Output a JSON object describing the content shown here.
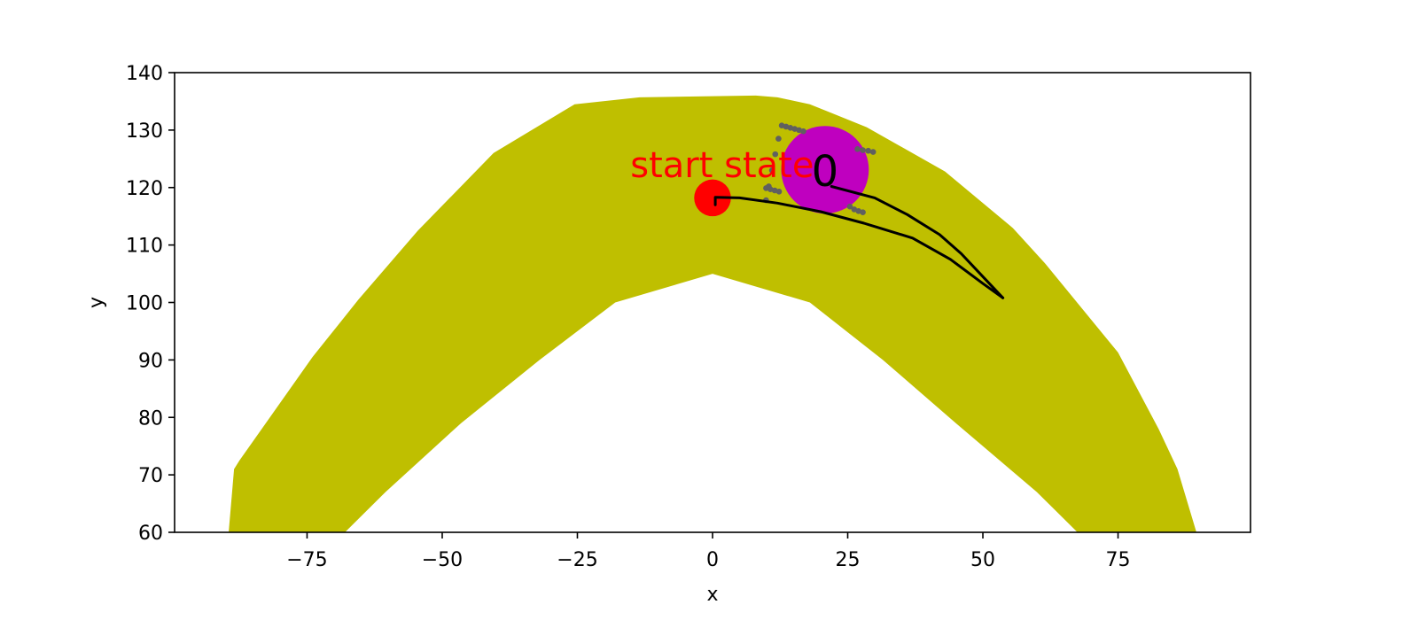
{
  "chart_data": {
    "type": "scatter",
    "xlabel": "x",
    "ylabel": "y",
    "xlim": [
      -99.5,
      99.5
    ],
    "ylim": [
      60,
      140
    ],
    "xticks": [
      -75,
      -50,
      -25,
      0,
      25,
      50,
      75
    ],
    "xtick_labels": [
      "−75",
      "−50",
      "−25",
      "0",
      "25",
      "50",
      "75"
    ],
    "yticks": [
      60,
      70,
      80,
      90,
      100,
      110,
      120,
      130,
      140
    ],
    "ytick_labels": [
      "60",
      "70",
      "80",
      "90",
      "100",
      "110",
      "120",
      "130",
      "140"
    ],
    "grid": false,
    "road": {
      "color": "#bfbf00",
      "outer_boundary": [
        [
          -89.5,
          60
        ],
        [
          -88.5,
          71
        ],
        [
          -87.5,
          72.5
        ],
        [
          -74,
          90.5
        ],
        [
          -65.5,
          100.5
        ],
        [
          -54.5,
          112.5
        ],
        [
          -40.5,
          126
        ],
        [
          -25.5,
          134.5
        ],
        [
          -13.5,
          135.7
        ],
        [
          8,
          136
        ],
        [
          12,
          135.7
        ],
        [
          18,
          134.5
        ],
        [
          28.5,
          130.5
        ],
        [
          43,
          122.8
        ],
        [
          55.5,
          113
        ],
        [
          61.5,
          106.8
        ],
        [
          75,
          91.3
        ],
        [
          82.5,
          78
        ],
        [
          86,
          71
        ],
        [
          89.5,
          60
        ]
      ],
      "inner_boundary": [
        [
          67.5,
          60
        ],
        [
          60,
          67
        ],
        [
          45,
          79
        ],
        [
          31.5,
          90
        ],
        [
          18,
          100
        ],
        [
          0,
          105
        ],
        [
          -18,
          100
        ],
        [
          -32,
          90
        ],
        [
          -46.5,
          79
        ],
        [
          -60.5,
          67
        ],
        [
          -68,
          60
        ]
      ]
    },
    "start_state": {
      "x": 0,
      "y": 118.2,
      "radius": 3.4,
      "color": "#ff0000"
    },
    "start_label": {
      "text": "start state",
      "x": -15.2,
      "y": 121.8,
      "color": "#ff0000"
    },
    "obstacle": {
      "x": 20.8,
      "y": 123.1,
      "radius": 8.1,
      "color": "#bf00bf"
    },
    "obstacle_label": {
      "text": "0",
      "x": 20.8,
      "y": 120.3,
      "color": "#000000"
    },
    "trajectories": [
      {
        "color": "#000000",
        "points": [
          [
            0.5,
            117
          ],
          [
            0.5,
            118.3
          ],
          [
            5,
            118.2
          ],
          [
            12,
            117.3
          ],
          [
            20,
            115.8
          ],
          [
            28,
            113.8
          ],
          [
            37,
            111.2
          ],
          [
            44,
            107.5
          ],
          [
            50,
            103.3
          ],
          [
            53.7,
            100.8
          ]
        ]
      },
      {
        "color": "#000000",
        "points": [
          [
            53.7,
            100.8
          ],
          [
            50,
            104.5
          ],
          [
            46,
            108.5
          ],
          [
            42,
            111.8
          ],
          [
            36,
            115.3
          ],
          [
            30,
            118.2
          ],
          [
            22,
            120.2
          ]
        ]
      }
    ],
    "sample_points": {
      "color": "#606060",
      "points": [
        [
          12.8,
          130.8
        ],
        [
          13.6,
          130.6
        ],
        [
          14.4,
          130.4
        ],
        [
          15.2,
          130.2
        ],
        [
          16.0,
          130.0
        ],
        [
          16.8,
          129.8
        ],
        [
          12.2,
          128.5
        ],
        [
          11.6,
          125.8
        ],
        [
          11.0,
          123.0
        ],
        [
          10.4,
          120.2
        ],
        [
          9.9,
          117.8
        ],
        [
          9.9,
          119.9
        ],
        [
          10.7,
          119.7
        ],
        [
          11.5,
          119.5
        ],
        [
          12.3,
          119.3
        ],
        [
          26.8,
          126.7
        ],
        [
          27.8,
          126.5
        ],
        [
          28.8,
          126.4
        ],
        [
          29.7,
          126.2
        ],
        [
          25.4,
          116.7
        ],
        [
          26.2,
          116.2
        ],
        [
          27.0,
          115.9
        ],
        [
          27.8,
          115.7
        ]
      ]
    }
  }
}
